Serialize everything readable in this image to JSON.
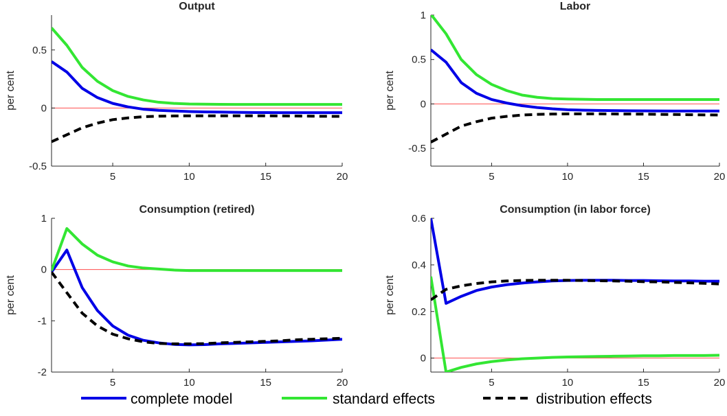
{
  "colors": {
    "complete": "#0000e6",
    "standard": "#33e633",
    "distribution": "#000000",
    "zero_line": "#ff4d4d",
    "axis": "#262626"
  },
  "legend": {
    "entries": [
      "complete model",
      "standard effects",
      "distribution effects"
    ]
  },
  "chart_data": [
    {
      "type": "line",
      "title": "Output",
      "xlabel": "",
      "ylabel": "per cent",
      "xlim": [
        1,
        20
      ],
      "ylim": [
        -0.5,
        0.8
      ],
      "xticks": [
        5,
        10,
        15,
        20
      ],
      "yticks": [
        -0.5,
        0,
        0.5
      ],
      "ytick_labels": [
        "-0.5",
        "0",
        "0.5"
      ],
      "zero_line": true,
      "x": [
        1,
        2,
        3,
        4,
        5,
        6,
        7,
        8,
        9,
        10,
        11,
        12,
        13,
        14,
        15,
        16,
        17,
        18,
        19,
        20
      ],
      "series": [
        {
          "name": "complete model",
          "style": "solid",
          "values": [
            0.4,
            0.31,
            0.17,
            0.09,
            0.04,
            0.01,
            -0.01,
            -0.02,
            -0.025,
            -0.03,
            -0.033,
            -0.035,
            -0.037,
            -0.038,
            -0.039,
            -0.04,
            -0.04,
            -0.04,
            -0.04,
            -0.04
          ]
        },
        {
          "name": "standard effects",
          "style": "solid",
          "values": [
            0.69,
            0.54,
            0.35,
            0.23,
            0.15,
            0.1,
            0.07,
            0.05,
            0.04,
            0.035,
            0.033,
            0.032,
            0.031,
            0.031,
            0.031,
            0.031,
            0.031,
            0.031,
            0.031,
            0.031
          ]
        },
        {
          "name": "distribution effects",
          "style": "dashed",
          "values": [
            -0.29,
            -0.23,
            -0.17,
            -0.13,
            -0.1,
            -0.085,
            -0.075,
            -0.07,
            -0.068,
            -0.067,
            -0.067,
            -0.067,
            -0.067,
            -0.067,
            -0.067,
            -0.068,
            -0.069,
            -0.07,
            -0.071,
            -0.072
          ]
        }
      ]
    },
    {
      "type": "line",
      "title": "Labor",
      "xlabel": "",
      "ylabel": "per cent",
      "xlim": [
        1,
        20
      ],
      "ylim": [
        -0.7,
        1.0
      ],
      "xticks": [
        5,
        10,
        15,
        20
      ],
      "yticks": [
        -0.5,
        0,
        0.5,
        1
      ],
      "ytick_labels": [
        "-0.5",
        "0",
        "0.5",
        "1"
      ],
      "zero_line": true,
      "x": [
        1,
        2,
        3,
        4,
        5,
        6,
        7,
        8,
        9,
        10,
        11,
        12,
        13,
        14,
        15,
        16,
        17,
        18,
        19,
        20
      ],
      "series": [
        {
          "name": "complete model",
          "style": "solid",
          "values": [
            0.61,
            0.47,
            0.24,
            0.12,
            0.05,
            0.01,
            -0.02,
            -0.04,
            -0.055,
            -0.065,
            -0.07,
            -0.073,
            -0.075,
            -0.077,
            -0.078,
            -0.079,
            -0.08,
            -0.08,
            -0.08,
            -0.08
          ]
        },
        {
          "name": "standard effects",
          "style": "solid",
          "values": [
            1.01,
            0.79,
            0.5,
            0.33,
            0.22,
            0.15,
            0.1,
            0.075,
            0.06,
            0.055,
            0.052,
            0.05,
            0.05,
            0.05,
            0.05,
            0.05,
            0.05,
            0.05,
            0.05,
            0.05
          ]
        },
        {
          "name": "distribution effects",
          "style": "dashed",
          "values": [
            -0.43,
            -0.34,
            -0.25,
            -0.2,
            -0.16,
            -0.14,
            -0.125,
            -0.118,
            -0.114,
            -0.112,
            -0.112,
            -0.112,
            -0.113,
            -0.114,
            -0.115,
            -0.117,
            -0.119,
            -0.121,
            -0.123,
            -0.125
          ]
        }
      ]
    },
    {
      "type": "line",
      "title": "Consumption (retired)",
      "xlabel": "",
      "ylabel": "per cent",
      "xlim": [
        1,
        20
      ],
      "ylim": [
        -2,
        1
      ],
      "xticks": [
        5,
        10,
        15,
        20
      ],
      "yticks": [
        -2,
        -1,
        0,
        1
      ],
      "ytick_labels": [
        "-2",
        "-1",
        "0",
        "1"
      ],
      "zero_line": true,
      "x": [
        1,
        2,
        3,
        4,
        5,
        6,
        7,
        8,
        9,
        10,
        11,
        12,
        13,
        14,
        15,
        16,
        17,
        18,
        19,
        20
      ],
      "series": [
        {
          "name": "complete model",
          "style": "solid",
          "values": [
            -0.05,
            0.38,
            -0.35,
            -0.8,
            -1.1,
            -1.28,
            -1.38,
            -1.43,
            -1.46,
            -1.47,
            -1.465,
            -1.45,
            -1.44,
            -1.43,
            -1.42,
            -1.41,
            -1.4,
            -1.39,
            -1.375,
            -1.36
          ]
        },
        {
          "name": "standard effects",
          "style": "solid",
          "values": [
            -0.02,
            0.8,
            0.5,
            0.28,
            0.15,
            0.07,
            0.03,
            0.01,
            -0.01,
            -0.02,
            -0.02,
            -0.02,
            -0.02,
            -0.02,
            -0.02,
            -0.02,
            -0.02,
            -0.02,
            -0.02,
            -0.02
          ]
        },
        {
          "name": "distribution effects",
          "style": "dashed",
          "values": [
            -0.05,
            -0.45,
            -0.85,
            -1.1,
            -1.26,
            -1.35,
            -1.41,
            -1.44,
            -1.45,
            -1.45,
            -1.445,
            -1.43,
            -1.42,
            -1.41,
            -1.4,
            -1.39,
            -1.37,
            -1.36,
            -1.35,
            -1.34
          ]
        }
      ]
    },
    {
      "type": "line",
      "title": "Consumption (in labor force)",
      "xlabel": "",
      "ylabel": "per cent",
      "xlim": [
        1,
        20
      ],
      "ylim": [
        -0.06,
        0.6
      ],
      "xticks": [
        5,
        10,
        15,
        20
      ],
      "yticks": [
        0,
        0.2,
        0.4,
        0.6
      ],
      "ytick_labels": [
        "0",
        "0.2",
        "0.4",
        "0.6"
      ],
      "zero_line": true,
      "x": [
        1,
        2,
        3,
        4,
        5,
        6,
        7,
        8,
        9,
        10,
        11,
        12,
        13,
        14,
        15,
        16,
        17,
        18,
        19,
        20
      ],
      "series": [
        {
          "name": "complete model",
          "style": "solid",
          "values": [
            0.6,
            0.235,
            0.265,
            0.29,
            0.305,
            0.315,
            0.322,
            0.327,
            0.331,
            0.333,
            0.334,
            0.334,
            0.334,
            0.333,
            0.333,
            0.332,
            0.331,
            0.331,
            0.33,
            0.33
          ]
        },
        {
          "name": "standard effects",
          "style": "solid",
          "values": [
            0.35,
            -0.06,
            -0.04,
            -0.025,
            -0.015,
            -0.008,
            -0.003,
            0.0,
            0.003,
            0.005,
            0.006,
            0.007,
            0.008,
            0.009,
            0.01,
            0.01,
            0.011,
            0.011,
            0.011,
            0.012
          ]
        },
        {
          "name": "distribution effects",
          "style": "dashed",
          "values": [
            0.25,
            0.295,
            0.31,
            0.32,
            0.327,
            0.331,
            0.333,
            0.334,
            0.334,
            0.334,
            0.333,
            0.332,
            0.331,
            0.33,
            0.328,
            0.327,
            0.325,
            0.323,
            0.321,
            0.318
          ]
        }
      ]
    }
  ]
}
